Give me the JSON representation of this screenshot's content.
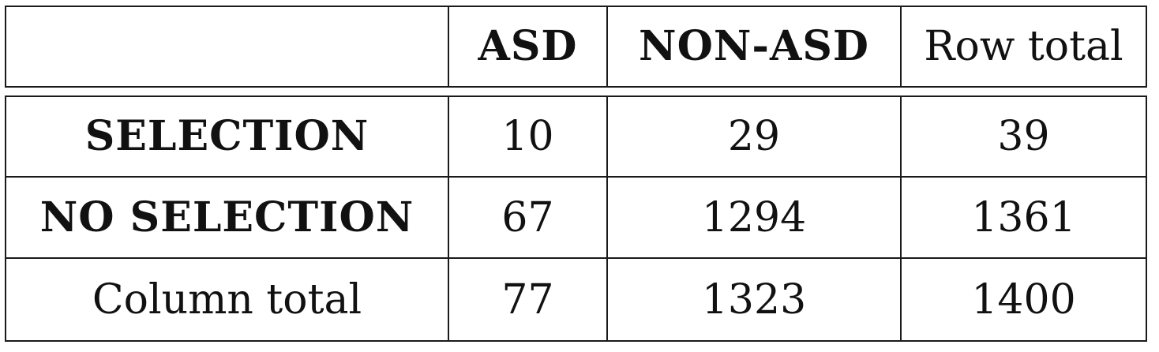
{
  "table": {
    "header": {
      "corner": "",
      "col1": "ASD",
      "col2": "NON-ASD",
      "col3": "Row total"
    },
    "rows": [
      {
        "label": "SELECTION",
        "asd": "10",
        "non_asd": "29",
        "total": "39"
      },
      {
        "label": "NO SELECTION",
        "asd": "67",
        "non_asd": "1294",
        "total": "1361"
      },
      {
        "label": "Column total",
        "asd": "77",
        "non_asd": "1323",
        "total": "1400"
      }
    ]
  }
}
